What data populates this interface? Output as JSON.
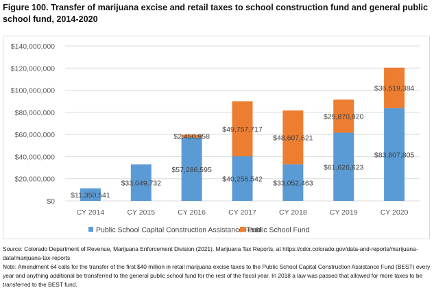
{
  "figure": {
    "title": "Figure 100. Transfer of marijuana excise and retail taxes to school construction fund and general public school fund, 2014-2020",
    "source": "Source: Colorado Department of Revenue, Marijuana Enforcement Division (2021). Marijuana Tax Reports, at https://cdor.colorado.gov/data-and-reports/marijuana-data/marijuana-tax-reports",
    "note": "Note: Amendment 64 calls for the transfer of the first $40 million in retail marijuana excise taxes to the Public School Capital Construction Assistance Fund (BEST) every year and anything additional be transferred to the general public school fund for the rest of the fiscal year. In 2018 a law was passed that allowed for more taxes to be transferred to the BEST fund."
  },
  "chart_data": {
    "type": "bar",
    "stacked": true,
    "title": "Figure 100. Transfer of marijuana excise and retail taxes to school construction fund and general public school fund, 2014-2020",
    "xlabel": "",
    "ylabel": "",
    "categories": [
      "CY 2014",
      "CY 2015",
      "CY 2016",
      "CY 2017",
      "CY 2018",
      "CY 2019",
      "CY 2020"
    ],
    "series": [
      {
        "name": "Public School Capital Construction Assistance Fund",
        "color": "#5b9bd5",
        "values": [
          11350541,
          33049732,
          57286595,
          40256542,
          33052463,
          61626623,
          83807805
        ],
        "labels": [
          "$11,350,541",
          "$33,049,732",
          "$57,286,595",
          "$40,256,542",
          "$33,052,463",
          "$61,626,623",
          "$83,807,805"
        ]
      },
      {
        "name": "Public School Fund",
        "color": "#ed7d31",
        "values": [
          0,
          0,
          2450958,
          49757717,
          48607621,
          29870920,
          36519384
        ],
        "labels": [
          "",
          "",
          "$2,450,958",
          "$49,757,717",
          "$48,607,621",
          "$29,870,920",
          "$36,519,384"
        ]
      }
    ],
    "ylim": [
      0,
      140000000
    ],
    "yticks": [
      0,
      20000000,
      40000000,
      60000000,
      80000000,
      100000000,
      120000000,
      140000000
    ],
    "ytick_labels": [
      "$0",
      "$20,000,000",
      "$40,000,000",
      "$60,000,000",
      "$80,000,000",
      "$100,000,000",
      "$120,000,000",
      "$140,000,000"
    ],
    "grid": true,
    "legend_position": "bottom"
  }
}
